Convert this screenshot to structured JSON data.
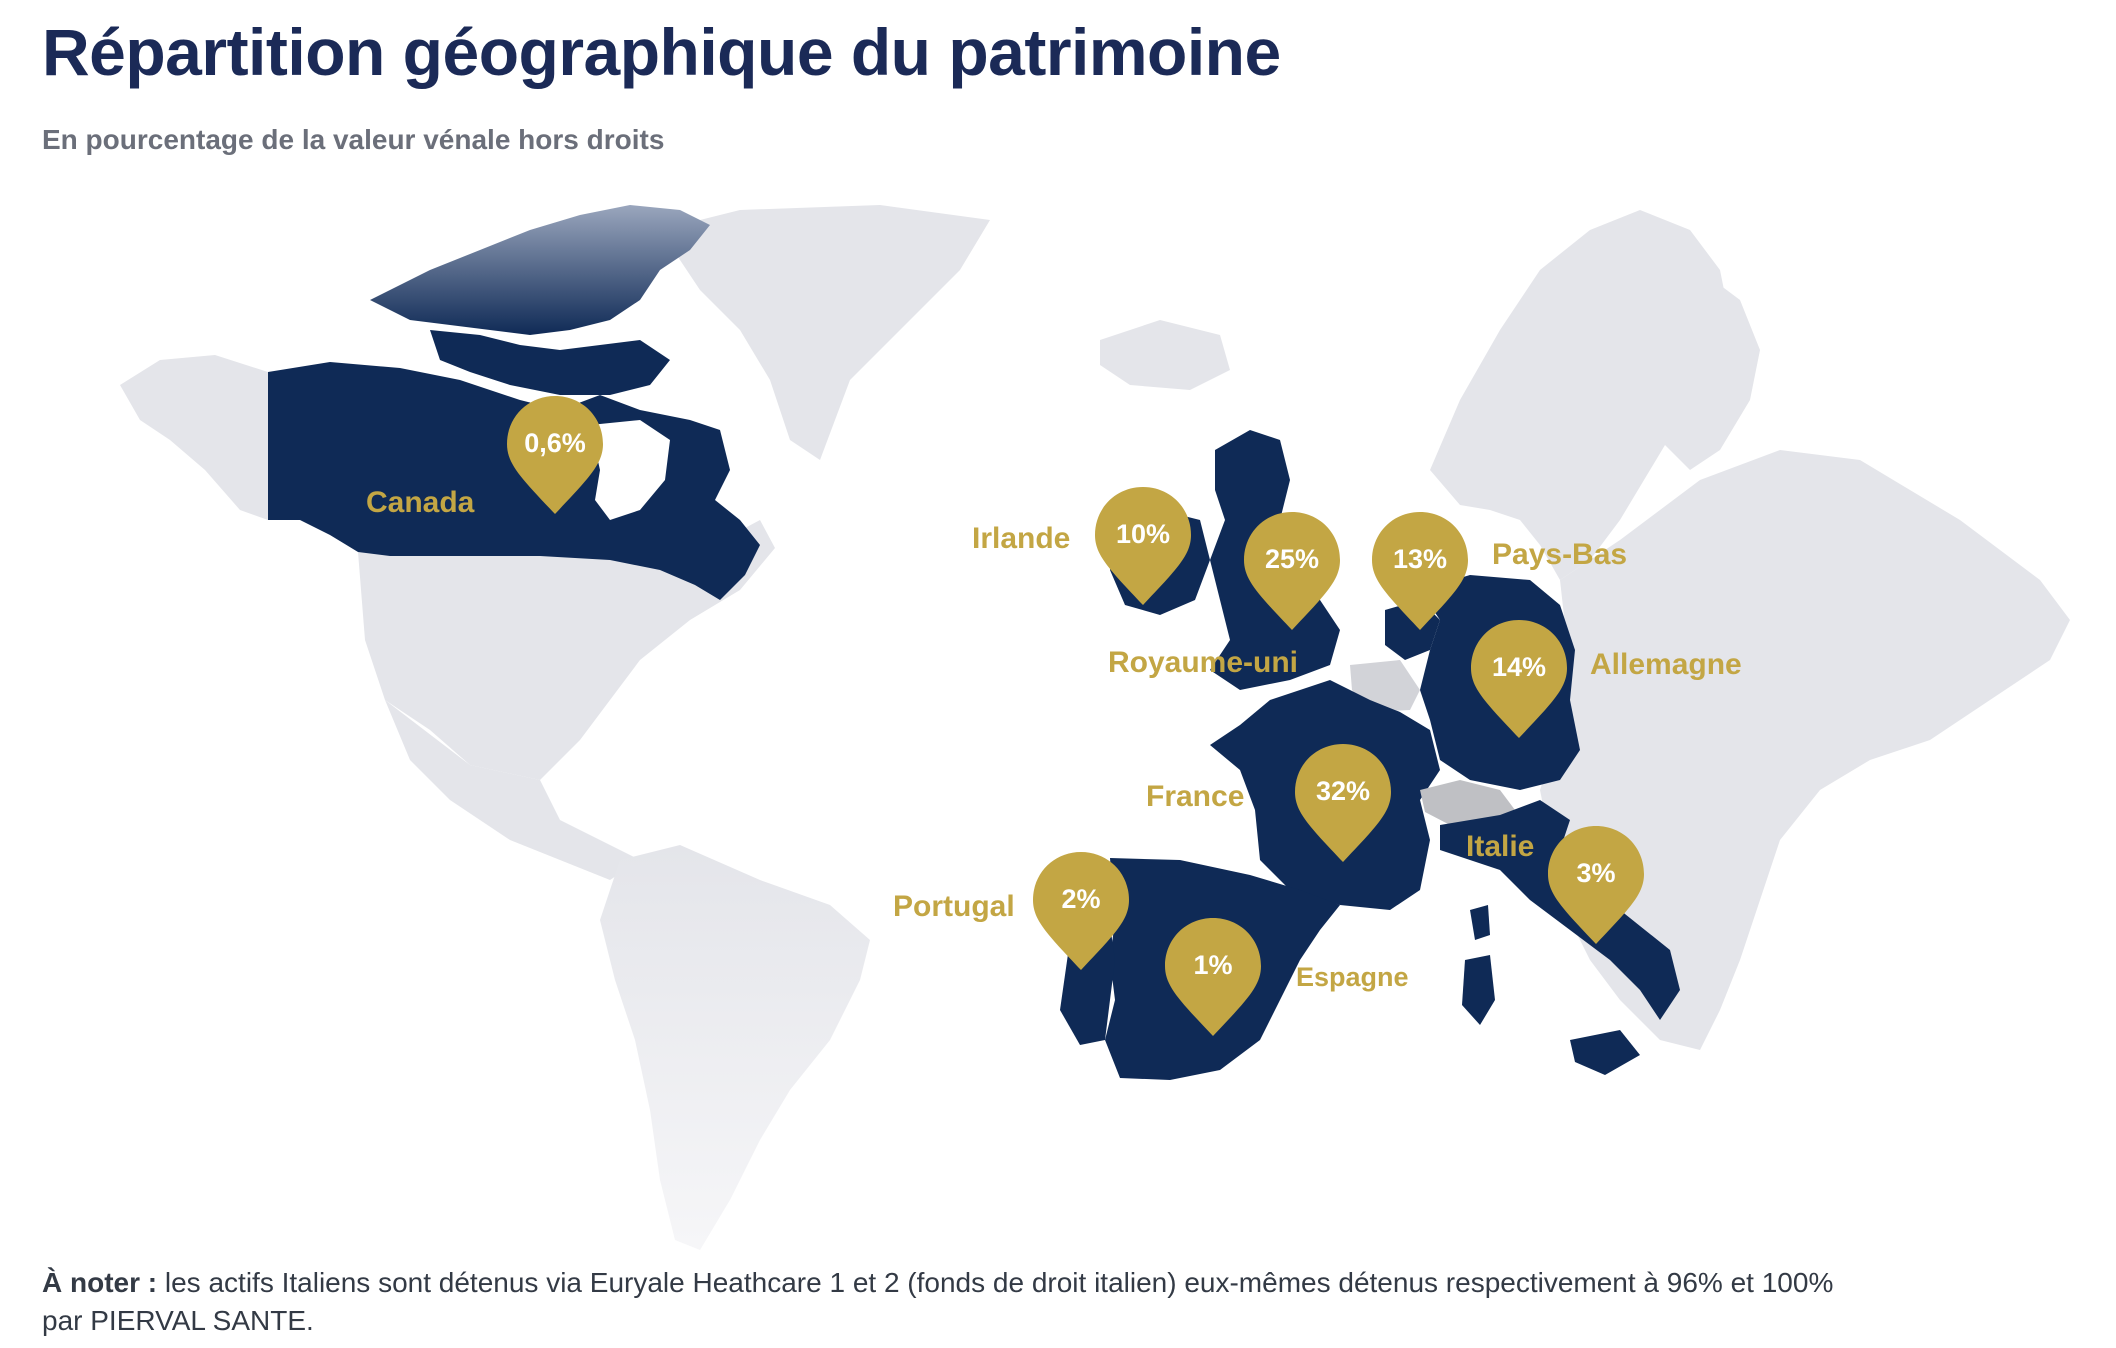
{
  "title": "Répartition géographique du patrimoine",
  "subtitle": "En pourcentage de la valeur vénale hors droits",
  "colors": {
    "highlight": "#0f2a56",
    "land": "#e4e5ea",
    "switzerland": "#bfc0c4",
    "pin": "#c3a644",
    "title": "#1b2a57"
  },
  "countries": [
    {
      "name": "Canada",
      "percent": "0,6%"
    },
    {
      "name": "Irlande",
      "percent": "10%"
    },
    {
      "name": "Royaume-uni",
      "percent": "25%"
    },
    {
      "name": "Pays-Bas",
      "percent": "13%"
    },
    {
      "name": "Allemagne",
      "percent": "14%"
    },
    {
      "name": "France",
      "percent": "32%"
    },
    {
      "name": "Italie",
      "percent": "3%"
    },
    {
      "name": "Portugal",
      "percent": "2%"
    },
    {
      "name": "Espagne",
      "percent": "1%"
    }
  ],
  "note": {
    "label": "À noter :",
    "line1": " les actifs Italiens sont détenus via Euryale Heathcare 1 et 2 (fonds de droit italien) eux-mêmes détenus respectivement à 96% et 100%",
    "line2": "par PIERVAL SANTE."
  }
}
